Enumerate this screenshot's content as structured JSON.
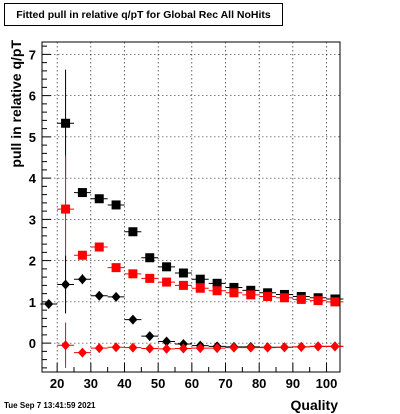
{
  "title": "Fitted pull in relative q/pT for Global Rec All NoHits",
  "datestamp": "Tue Sep  7 13:41:59 2021",
  "chart_data": {
    "type": "scatter",
    "title": "Fitted pull in relative q/pT for Global Rec All NoHits",
    "xlabel": "Quality",
    "ylabel": "pull in relative q/pT",
    "xlim": [
      15.5,
      104
    ],
    "ylim": [
      -0.7,
      7.3
    ],
    "x_ticks": [
      20,
      30,
      40,
      50,
      60,
      70,
      80,
      90,
      100
    ],
    "y_ticks": [
      0,
      1,
      2,
      3,
      4,
      5,
      6,
      7
    ],
    "grid": true,
    "legend": "none",
    "series": [
      {
        "marker": "square",
        "color": "#000000",
        "points": [
          {
            "x": 22.5,
            "y": 5.33,
            "err": 1.3
          },
          {
            "x": 27.5,
            "y": 3.65,
            "err": 0.06
          },
          {
            "x": 32.5,
            "y": 3.5,
            "err": 0.05
          },
          {
            "x": 37.5,
            "y": 3.35,
            "err": 0.05
          },
          {
            "x": 42.5,
            "y": 2.7,
            "err": 0.04
          },
          {
            "x": 47.5,
            "y": 2.07,
            "err": 0.04
          },
          {
            "x": 52.5,
            "y": 1.85,
            "err": 0.03
          },
          {
            "x": 57.5,
            "y": 1.7,
            "err": 0.03
          },
          {
            "x": 62.5,
            "y": 1.55,
            "err": 0.03
          },
          {
            "x": 67.5,
            "y": 1.45,
            "err": 0.03
          },
          {
            "x": 72.5,
            "y": 1.35,
            "err": 0.03
          },
          {
            "x": 77.5,
            "y": 1.28,
            "err": 0.03
          },
          {
            "x": 82.5,
            "y": 1.22,
            "err": 0.03
          },
          {
            "x": 87.5,
            "y": 1.18,
            "err": 0.03
          },
          {
            "x": 92.5,
            "y": 1.13,
            "err": 0.03
          },
          {
            "x": 97.5,
            "y": 1.1,
            "err": 0.03
          },
          {
            "x": 102.5,
            "y": 1.07,
            "err": 0.03
          }
        ]
      },
      {
        "marker": "square",
        "color": "#ff0000",
        "points": [
          {
            "x": 22.5,
            "y": 3.25,
            "err": 1.3
          },
          {
            "x": 27.5,
            "y": 2.13,
            "err": 0.05
          },
          {
            "x": 32.5,
            "y": 2.33,
            "err": 0.05
          },
          {
            "x": 37.5,
            "y": 1.83,
            "err": 0.04
          },
          {
            "x": 42.5,
            "y": 1.68,
            "err": 0.04
          },
          {
            "x": 47.5,
            "y": 1.57,
            "err": 0.03
          },
          {
            "x": 52.5,
            "y": 1.48,
            "err": 0.03
          },
          {
            "x": 57.5,
            "y": 1.4,
            "err": 0.03
          },
          {
            "x": 62.5,
            "y": 1.33,
            "err": 0.03
          },
          {
            "x": 67.5,
            "y": 1.27,
            "err": 0.03
          },
          {
            "x": 72.5,
            "y": 1.22,
            "err": 0.03
          },
          {
            "x": 77.5,
            "y": 1.17,
            "err": 0.03
          },
          {
            "x": 82.5,
            "y": 1.13,
            "err": 0.03
          },
          {
            "x": 87.5,
            "y": 1.1,
            "err": 0.03
          },
          {
            "x": 92.5,
            "y": 1.06,
            "err": 0.03
          },
          {
            "x": 97.5,
            "y": 1.03,
            "err": 0.03
          },
          {
            "x": 102.5,
            "y": 1.0,
            "err": 0.03
          }
        ]
      },
      {
        "marker": "diamond",
        "color": "#000000",
        "points": [
          {
            "x": 17.5,
            "y": 0.95,
            "err": 0.05
          },
          {
            "x": 22.5,
            "y": 1.42,
            "err": 0.7
          },
          {
            "x": 27.5,
            "y": 1.55,
            "err": 0.12
          },
          {
            "x": 32.5,
            "y": 1.15,
            "err": 0.05
          },
          {
            "x": 37.5,
            "y": 1.12,
            "err": 0.04
          },
          {
            "x": 42.5,
            "y": 0.57,
            "err": 0.03
          },
          {
            "x": 47.5,
            "y": 0.17,
            "err": 0.03
          },
          {
            "x": 52.5,
            "y": 0.04,
            "err": 0.02
          },
          {
            "x": 57.5,
            "y": -0.02,
            "err": 0.02
          },
          {
            "x": 62.5,
            "y": -0.06,
            "err": 0.02
          },
          {
            "x": 67.5,
            "y": -0.08,
            "err": 0.02
          },
          {
            "x": 72.5,
            "y": -0.09,
            "err": 0.02
          },
          {
            "x": 77.5,
            "y": -0.09,
            "err": 0.02
          },
          {
            "x": 82.5,
            "y": -0.1,
            "err": 0.02
          },
          {
            "x": 87.5,
            "y": -0.1,
            "err": 0.02
          },
          {
            "x": 92.5,
            "y": -0.09,
            "err": 0.02
          },
          {
            "x": 97.5,
            "y": -0.08,
            "err": 0.02
          },
          {
            "x": 102.5,
            "y": -0.08,
            "err": 0.02
          }
        ]
      },
      {
        "marker": "diamond",
        "color": "#ff0000",
        "points": [
          {
            "x": 22.5,
            "y": -0.05,
            "err": 0.55
          },
          {
            "x": 27.5,
            "y": -0.23,
            "err": 0.03
          },
          {
            "x": 32.5,
            "y": -0.12,
            "err": 0.02
          },
          {
            "x": 37.5,
            "y": -0.1,
            "err": 0.02
          },
          {
            "x": 42.5,
            "y": -0.11,
            "err": 0.02
          },
          {
            "x": 47.5,
            "y": -0.13,
            "err": 0.02
          },
          {
            "x": 52.5,
            "y": -0.14,
            "err": 0.02
          },
          {
            "x": 57.5,
            "y": -0.13,
            "err": 0.02
          },
          {
            "x": 62.5,
            "y": -0.12,
            "err": 0.02
          },
          {
            "x": 67.5,
            "y": -0.12,
            "err": 0.02
          },
          {
            "x": 72.5,
            "y": -0.11,
            "err": 0.02
          },
          {
            "x": 77.5,
            "y": -0.11,
            "err": 0.02
          },
          {
            "x": 82.5,
            "y": -0.11,
            "err": 0.02
          },
          {
            "x": 87.5,
            "y": -0.1,
            "err": 0.02
          },
          {
            "x": 92.5,
            "y": -0.09,
            "err": 0.02
          },
          {
            "x": 97.5,
            "y": -0.08,
            "err": 0.02
          },
          {
            "x": 102.5,
            "y": -0.08,
            "err": 0.02
          }
        ]
      }
    ]
  }
}
